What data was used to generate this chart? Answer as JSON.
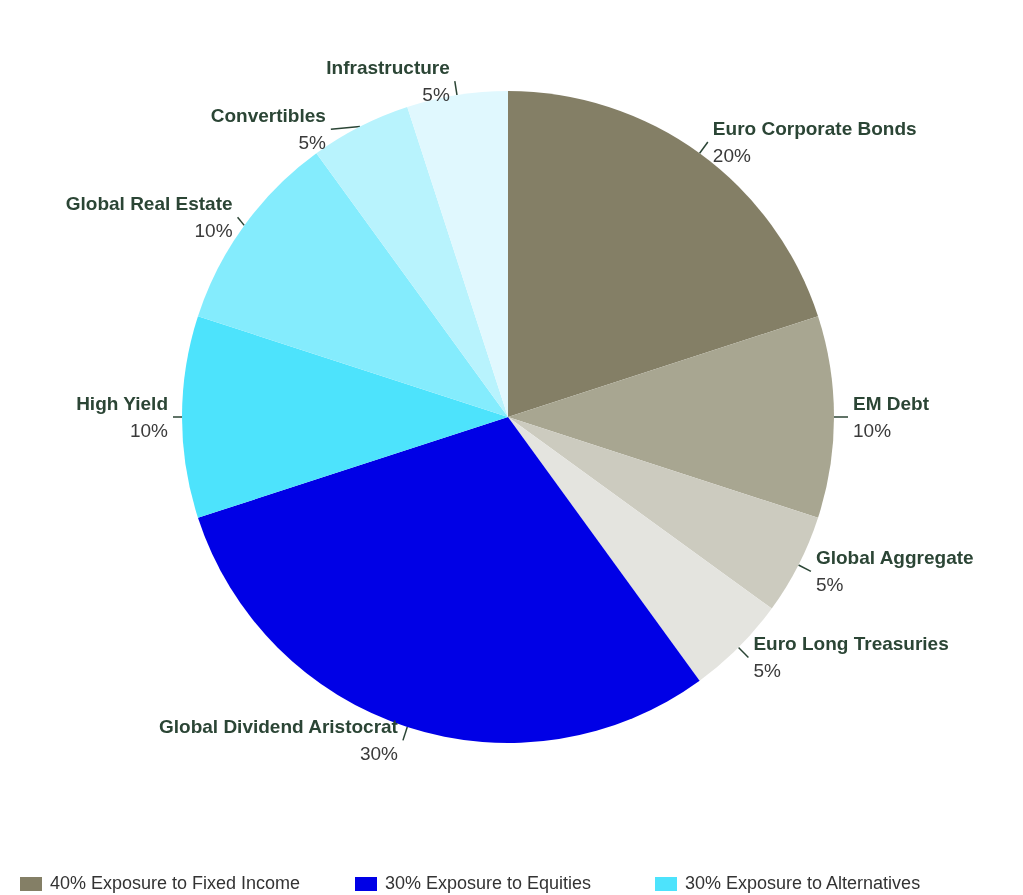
{
  "chart_data": {
    "type": "pie",
    "categories": [
      "Euro Corporate Bonds",
      "EM Debt",
      "Global Aggregate",
      "Euro Long Treasuries",
      "Global Dividend Aristocrat",
      "High Yield",
      "Global Real Estate",
      "Convertibles",
      "Infrastructure"
    ],
    "values": [
      20,
      10,
      5,
      5,
      30,
      10,
      10,
      5,
      5
    ],
    "value_labels": [
      "20%",
      "10%",
      "5%",
      "5%",
      "30%",
      "10%",
      "10%",
      "5%",
      "5%"
    ],
    "colors": [
      "#847f66",
      "#a8a691",
      "#cccbbf",
      "#e4e4df",
      "#0000e6",
      "#4de3fc",
      "#84ecfd",
      "#b8f3fd",
      "#e0f8fe"
    ],
    "annotations": [
      "40% Exposure to Fixed Income",
      "30% Exposure to Equities",
      "30% Exposure to Alternatives"
    ]
  }
}
